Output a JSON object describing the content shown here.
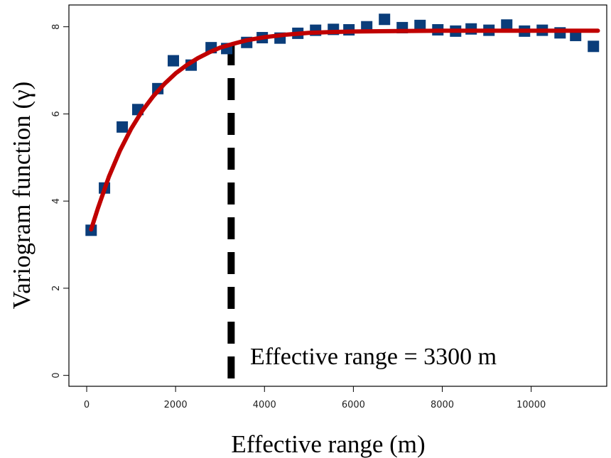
{
  "chart_data": {
    "type": "scatter",
    "title": "",
    "xlabel": "Effective range (m)",
    "ylabel": "Variogram function (γ)",
    "xlim": [
      -400,
      11700
    ],
    "ylim": [
      -0.25,
      8.5
    ],
    "x_ticks": [
      0,
      2000,
      4000,
      6000,
      8000,
      10000
    ],
    "y_ticks": [
      0,
      2,
      4,
      6,
      8
    ],
    "grid": false,
    "legend": "none",
    "series": [
      {
        "kind": "points",
        "marker": "square",
        "color": "#0a3d7a",
        "x": [
          100,
          400,
          800,
          1150,
          1600,
          1950,
          2350,
          2800,
          3150,
          3600,
          3950,
          4350,
          4750,
          5150,
          5550,
          5900,
          6300,
          6700,
          7100,
          7500,
          7900,
          8300,
          8650,
          9050,
          9450,
          9850,
          10250,
          10650,
          11000,
          11400
        ],
        "y": [
          3.33,
          4.3,
          5.7,
          6.1,
          6.58,
          7.22,
          7.12,
          7.52,
          7.5,
          7.64,
          7.75,
          7.74,
          7.85,
          7.92,
          7.94,
          7.93,
          8.0,
          8.17,
          7.98,
          8.03,
          7.93,
          7.9,
          7.95,
          7.92,
          8.04,
          7.9,
          7.92,
          7.86,
          7.8,
          7.55
        ]
      },
      {
        "kind": "fitted-curve",
        "color": "#c00000",
        "x": [
          100,
          250,
          500,
          750,
          1000,
          1250,
          1500,
          1750,
          2000,
          2250,
          2500,
          2750,
          3000,
          3300,
          3600,
          4000,
          4500,
          5000,
          5500,
          6000,
          7000,
          8000,
          9000,
          10000,
          11000,
          11500
        ],
        "y": [
          3.35,
          3.83,
          4.56,
          5.16,
          5.66,
          6.07,
          6.41,
          6.69,
          6.93,
          7.12,
          7.28,
          7.41,
          7.52,
          7.61,
          7.69,
          7.76,
          7.82,
          7.86,
          7.88,
          7.89,
          7.9,
          7.91,
          7.91,
          7.91,
          7.91,
          7.91
        ]
      }
    ],
    "reference_line": {
      "x": 3250,
      "style": "dashed",
      "color": "#000000"
    },
    "annotation": "Effective range = 3300 m"
  }
}
